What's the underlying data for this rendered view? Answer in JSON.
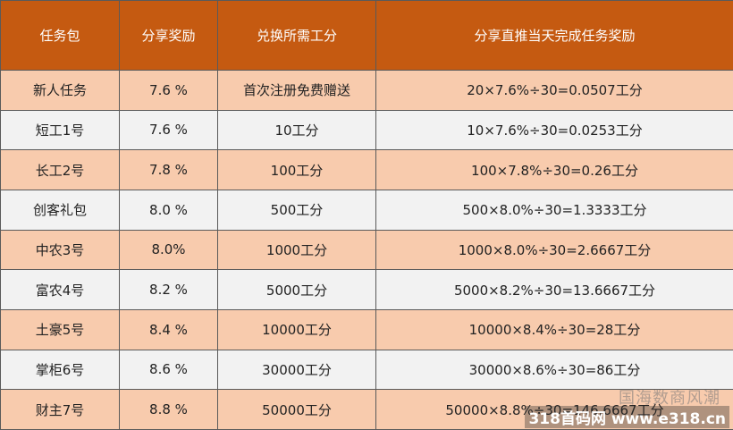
{
  "table": {
    "header": [
      "任务包",
      "分享奖励",
      "兑换所需工分",
      "分享直推当天完成任务奖励"
    ],
    "rows": [
      [
        "新人任务",
        "7.6 %",
        "首次注册免费赠送",
        "20×7.6%÷30=0.0507工分"
      ],
      [
        "短工1号",
        "7.6 %",
        "10工分",
        "10×7.6%÷30=0.0253工分"
      ],
      [
        "长工2号",
        "7.8 %",
        "100工分",
        "100×7.8%÷30=0.26工分"
      ],
      [
        "创客礼包",
        "8.0 %",
        "500工分",
        "500×8.0%÷30=1.3333工分"
      ],
      [
        "中农3号",
        "8.0%",
        "1000工分",
        "1000×8.0%÷30=2.6667工分"
      ],
      [
        "富农4号",
        "8.2 %",
        "5000工分",
        "5000×8.2%÷30=13.6667工分"
      ],
      [
        "土豪5号",
        "8.4 %",
        "10000工分",
        "10000×8.4%÷30=28工分"
      ],
      [
        "掌柜6号",
        "8.6 %",
        "30000工分",
        "30000×8.6%÷30=86工分"
      ],
      [
        "财主7号",
        "8.8 %",
        "50000工分",
        "50000×8.8%÷30=146.6667工分"
      ]
    ]
  },
  "watermarks": [
    "国海数商风潮",
    "318首码网 www.e318.cn"
  ]
}
